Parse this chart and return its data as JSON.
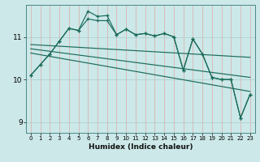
{
  "xlabel": "Humidex (Indice chaleur)",
  "background_color": "#cce8e8",
  "grid_color": "#aacccc",
  "line_color": "#1a6b5a",
  "xlim": [
    -0.5,
    23.5
  ],
  "ylim": [
    8.75,
    11.75
  ],
  "yticks": [
    9,
    10,
    11
  ],
  "xticks": [
    0,
    1,
    2,
    3,
    4,
    5,
    6,
    7,
    8,
    9,
    10,
    11,
    12,
    13,
    14,
    15,
    16,
    17,
    18,
    19,
    20,
    21,
    22,
    23
  ],
  "series1_x": [
    0,
    1,
    2,
    3,
    4,
    5,
    6,
    7,
    8,
    9,
    10,
    11,
    12,
    13,
    14,
    15,
    16,
    17,
    18,
    19,
    20,
    21,
    22,
    23
  ],
  "series1_y": [
    10.1,
    10.35,
    10.6,
    10.9,
    11.2,
    11.15,
    11.42,
    11.38,
    11.38,
    11.05,
    11.18,
    11.05,
    11.08,
    11.02,
    11.08,
    11.0,
    10.22,
    10.95,
    10.6,
    10.05,
    10.0,
    10.0,
    9.1,
    9.65
  ],
  "series2_x": [
    0,
    1,
    2,
    3,
    4,
    5,
    6,
    7,
    8,
    9,
    10,
    11,
    12,
    13,
    14,
    15,
    16,
    17,
    18,
    19,
    20,
    21,
    22,
    23
  ],
  "series2_y": [
    10.1,
    10.35,
    10.6,
    10.9,
    11.2,
    11.15,
    11.6,
    11.48,
    11.5,
    11.05,
    11.18,
    11.05,
    11.08,
    11.02,
    11.08,
    11.0,
    10.22,
    10.95,
    10.6,
    10.05,
    10.0,
    10.0,
    9.1,
    9.65
  ],
  "trend1_x": [
    0,
    23
  ],
  "trend1_y": [
    10.82,
    10.52
  ],
  "trend2_x": [
    0,
    23
  ],
  "trend2_y": [
    10.72,
    10.05
  ],
  "trend3_x": [
    0,
    23
  ],
  "trend3_y": [
    10.62,
    9.72
  ]
}
